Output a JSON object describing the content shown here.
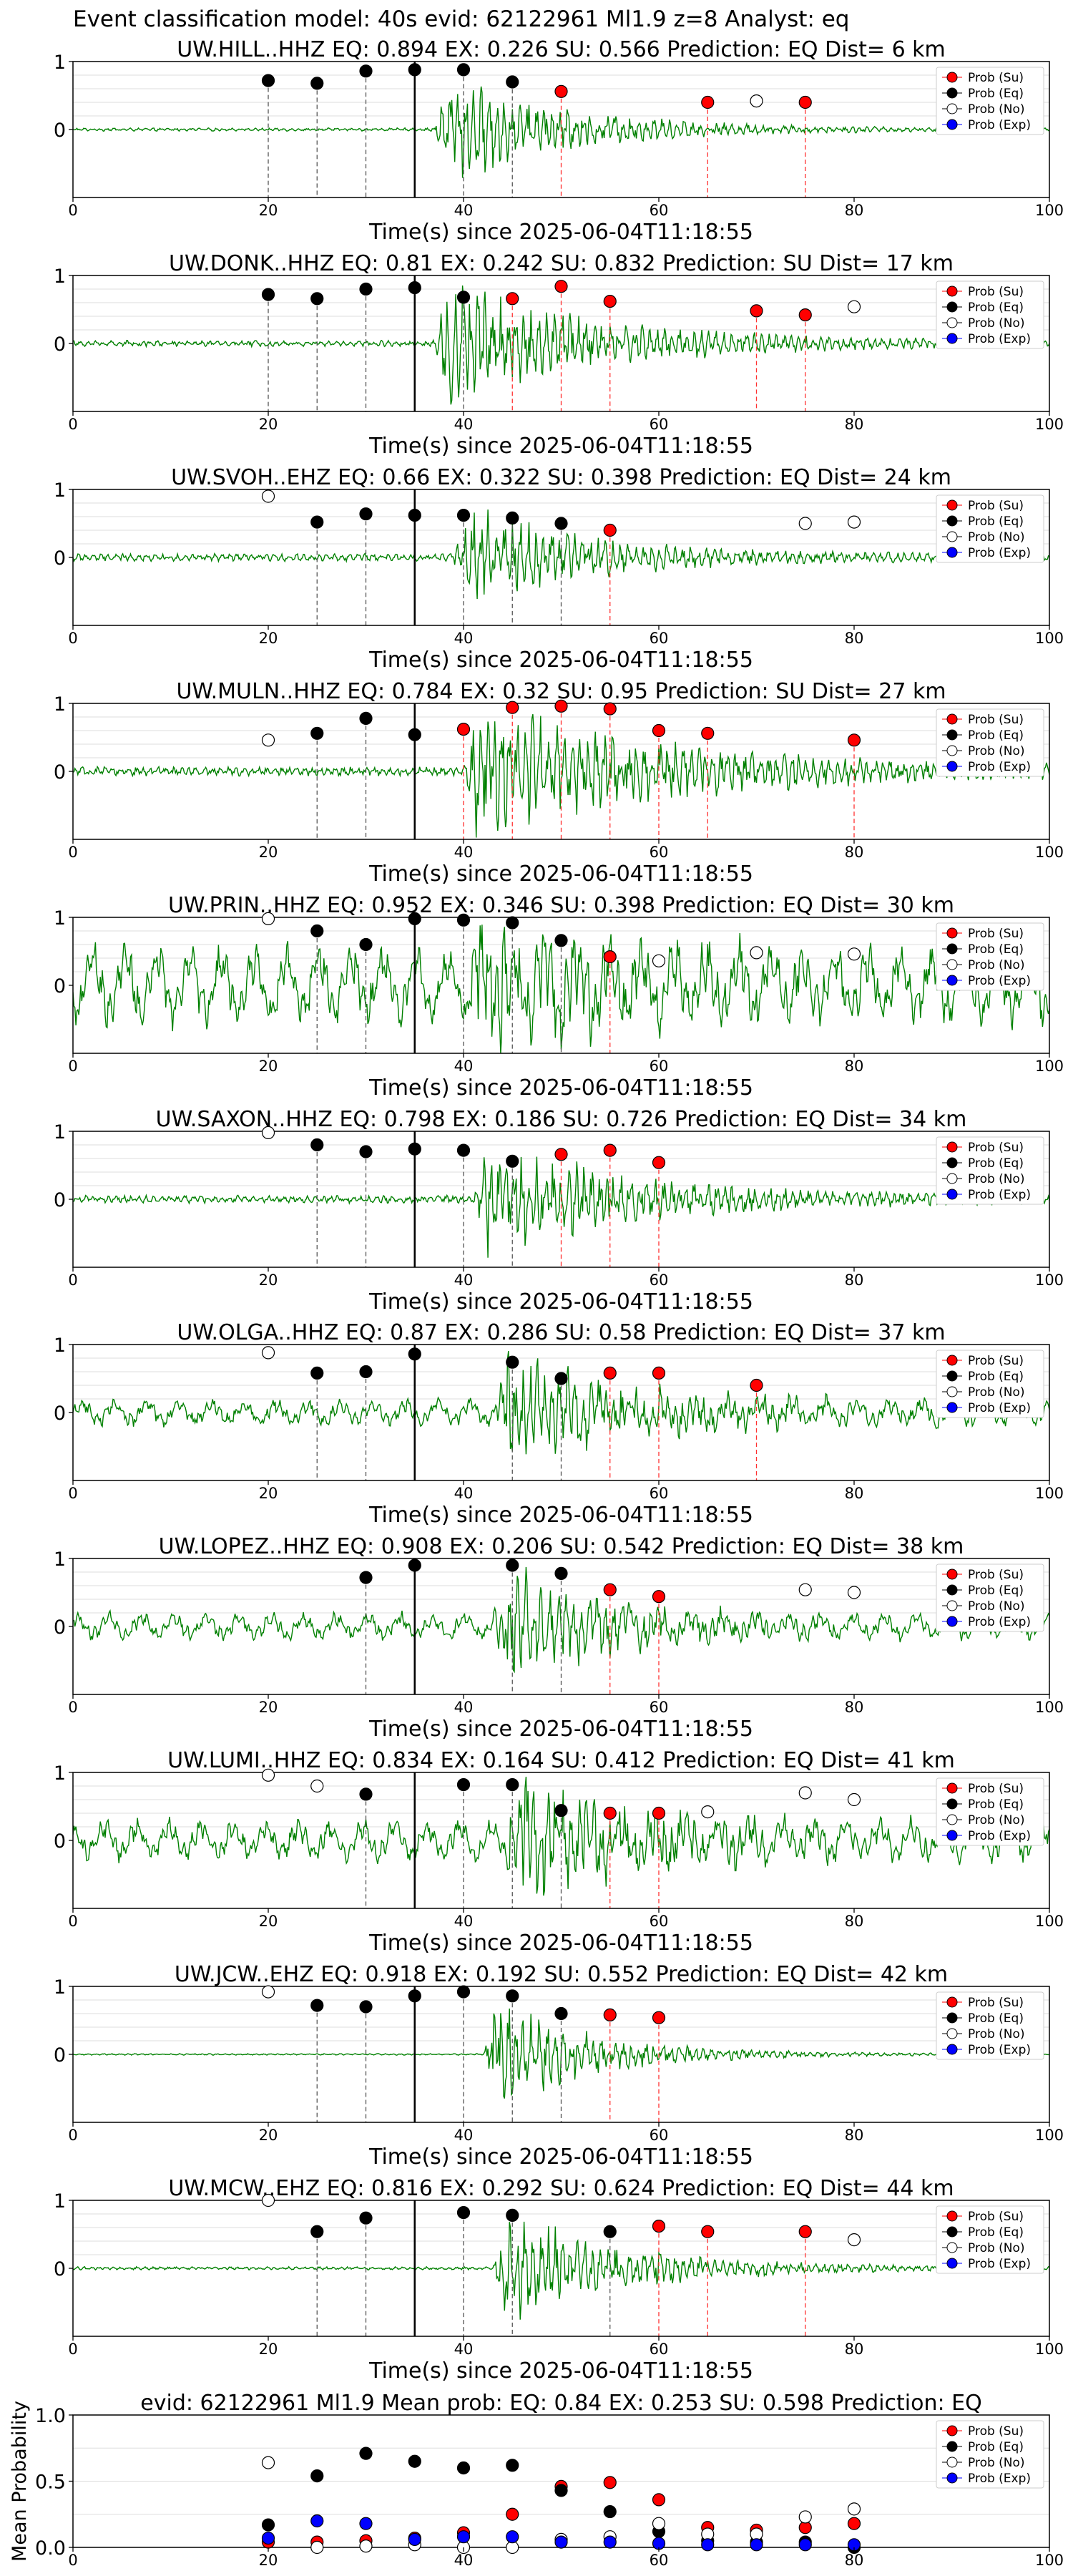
{
  "figure_title": "Event classification model: 40s evid: 62122961 Ml1.9 z=8 Analyst: eq",
  "legend": [
    "Prob (Su)",
    "Prob (Eq)",
    "Prob (No)",
    "Prob (Exp)"
  ],
  "colors": {
    "su": "#ff0000",
    "eq": "#000000",
    "no": "#ffffff",
    "exp": "#0000ff",
    "waveform": "#008000",
    "grid": "#dddddd"
  },
  "chart_data": [
    {
      "type": "line",
      "title": "UW.HILL..HHZ   EQ: 0.894  EX: 0.226  SU: 0.566   Prediction: EQ    Dist= 6 km",
      "xlabel": "Time(s) since 2025-06-04T11:18:55",
      "xlim": [
        0,
        100
      ],
      "ylim": [
        -1,
        1
      ],
      "xticks": [
        "0",
        "20",
        "40",
        "60",
        "80",
        "100"
      ],
      "yticks": [
        "1",
        "0"
      ],
      "pick": 35,
      "onset": 37,
      "amp": 0.8,
      "noise": 0.02,
      "decay": 12,
      "eq": [
        [
          20,
          0.72
        ],
        [
          25,
          0.68
        ],
        [
          30,
          0.86
        ],
        [
          35,
          0.88
        ],
        [
          40,
          0.88
        ],
        [
          45,
          0.7
        ]
      ],
      "su": [
        [
          50,
          0.56
        ],
        [
          65,
          0.4
        ],
        [
          75,
          0.4
        ]
      ],
      "no": [
        [
          70,
          0.42
        ]
      ],
      "exp": []
    },
    {
      "type": "line",
      "title": "UW.DONK..HHZ   EQ: 0.81  EX: 0.242  SU: 0.832   Prediction: SU    Dist= 17 km",
      "xlabel": "Time(s) since 2025-06-04T11:18:55",
      "xlim": [
        0,
        100
      ],
      "ylim": [
        -1,
        1
      ],
      "xticks": [
        "0",
        "20",
        "40",
        "60",
        "80",
        "100"
      ],
      "yticks": [
        "1",
        "0"
      ],
      "pick": 35,
      "onset": 37,
      "amp": 0.9,
      "noise": 0.04,
      "decay": 15,
      "eq": [
        [
          20,
          0.72
        ],
        [
          25,
          0.66
        ],
        [
          30,
          0.8
        ],
        [
          35,
          0.82
        ],
        [
          40,
          0.68
        ]
      ],
      "su": [
        [
          45,
          0.66
        ],
        [
          50,
          0.84
        ],
        [
          55,
          0.62
        ],
        [
          70,
          0.48
        ],
        [
          75,
          0.42
        ]
      ],
      "no": [
        [
          80,
          0.54
        ]
      ],
      "exp": []
    },
    {
      "type": "line",
      "title": "UW.SVOH..EHZ   EQ: 0.66  EX: 0.322  SU: 0.398   Prediction: EQ    Dist= 24 km",
      "xlabel": "Time(s) since 2025-06-04T11:18:55",
      "xlim": [
        0,
        100
      ],
      "ylim": [
        -1,
        1
      ],
      "xticks": [
        "0",
        "20",
        "40",
        "60",
        "80",
        "100"
      ],
      "yticks": [
        "1",
        "0"
      ],
      "pick": 35,
      "onset": 39,
      "amp": 0.75,
      "noise": 0.05,
      "decay": 12,
      "eq": [
        [
          25,
          0.52
        ],
        [
          30,
          0.64
        ],
        [
          35,
          0.62
        ],
        [
          40,
          0.62
        ],
        [
          45,
          0.58
        ],
        [
          50,
          0.5
        ]
      ],
      "su": [
        [
          55,
          0.4
        ]
      ],
      "no": [
        [
          20,
          0.9
        ],
        [
          75,
          0.5
        ],
        [
          80,
          0.52
        ]
      ],
      "exp": []
    },
    {
      "type": "line",
      "title": "UW.MULN..HHZ   EQ: 0.784  EX: 0.32  SU: 0.95   Prediction: SU    Dist= 27 km",
      "xlabel": "Time(s) since 2025-06-04T11:18:55",
      "xlim": [
        0,
        100
      ],
      "ylim": [
        -1,
        1
      ],
      "xticks": [
        "0",
        "20",
        "40",
        "60",
        "80",
        "100"
      ],
      "yticks": [
        "1",
        "0"
      ],
      "pick": 35,
      "onset": 40,
      "amp": 0.95,
      "noise": 0.06,
      "decay": 20,
      "eq": [
        [
          25,
          0.56
        ],
        [
          30,
          0.78
        ],
        [
          35,
          0.54
        ]
      ],
      "su": [
        [
          40,
          0.62
        ],
        [
          45,
          0.94
        ],
        [
          50,
          0.96
        ],
        [
          55,
          0.92
        ],
        [
          60,
          0.6
        ],
        [
          65,
          0.56
        ],
        [
          80,
          0.46
        ]
      ],
      "no": [
        [
          20,
          0.46
        ]
      ],
      "exp": []
    },
    {
      "type": "line",
      "title": "UW.PRIN..HHZ   EQ: 0.952  EX: 0.346  SU: 0.398   Prediction: EQ    Dist= 30 km",
      "xlabel": "Time(s) since 2025-06-04T11:18:55",
      "xlim": [
        0,
        100
      ],
      "ylim": [
        -1,
        1
      ],
      "xticks": [
        "0",
        "20",
        "40",
        "60",
        "80",
        "100"
      ],
      "yticks": [
        "1",
        "0"
      ],
      "pick": 35,
      "onset": 40,
      "amp": 0.7,
      "noise": 0.3,
      "decay": 12,
      "eq": [
        [
          25,
          0.8
        ],
        [
          30,
          0.6
        ],
        [
          35,
          0.98
        ],
        [
          40,
          0.96
        ],
        [
          45,
          0.92
        ],
        [
          50,
          0.66
        ]
      ],
      "su": [
        [
          55,
          0.42
        ]
      ],
      "no": [
        [
          20,
          0.98
        ],
        [
          60,
          0.36
        ],
        [
          70,
          0.48
        ],
        [
          80,
          0.46
        ]
      ],
      "exp": []
    },
    {
      "type": "line",
      "title": "UW.SAXON..HHZ   EQ: 0.798  EX: 0.186  SU: 0.726   Prediction: EQ    Dist= 34 km",
      "xlabel": "Time(s) since 2025-06-04T11:18:55",
      "xlim": [
        0,
        100
      ],
      "ylim": [
        -1,
        1
      ],
      "xticks": [
        "0",
        "20",
        "40",
        "60",
        "80",
        "100"
      ],
      "yticks": [
        "1",
        "0"
      ],
      "pick": 35,
      "onset": 41,
      "amp": 0.85,
      "noise": 0.05,
      "decay": 15,
      "eq": [
        [
          25,
          0.8
        ],
        [
          30,
          0.7
        ],
        [
          35,
          0.74
        ],
        [
          40,
          0.72
        ],
        [
          45,
          0.56
        ]
      ],
      "su": [
        [
          50,
          0.66
        ],
        [
          55,
          0.72
        ],
        [
          60,
          0.54
        ]
      ],
      "no": [
        [
          20,
          0.98
        ]
      ],
      "exp": []
    },
    {
      "type": "line",
      "title": "UW.OLGA..HHZ   EQ: 0.87  EX: 0.286  SU: 0.58   Prediction: EQ    Dist= 37 km",
      "xlabel": "Time(s) since 2025-06-04T11:18:55",
      "xlim": [
        0,
        100
      ],
      "ylim": [
        -1,
        1
      ],
      "xticks": [
        "0",
        "20",
        "40",
        "60",
        "80",
        "100"
      ],
      "yticks": [
        "1",
        "0"
      ],
      "pick": 35,
      "onset": 43,
      "amp": 0.75,
      "noise": 0.1,
      "decay": 12,
      "eq": [
        [
          25,
          0.58
        ],
        [
          30,
          0.6
        ],
        [
          35,
          0.86
        ],
        [
          45,
          0.74
        ],
        [
          50,
          0.5
        ]
      ],
      "su": [
        [
          55,
          0.58
        ],
        [
          60,
          0.58
        ],
        [
          70,
          0.4
        ]
      ],
      "no": [
        [
          20,
          0.88
        ]
      ],
      "exp": []
    },
    {
      "type": "line",
      "title": "UW.LOPEZ..HHZ   EQ: 0.908  EX: 0.206  SU: 0.542   Prediction: EQ    Dist= 38 km",
      "xlabel": "Time(s) since 2025-06-04T11:18:55",
      "xlim": [
        0,
        100
      ],
      "ylim": [
        -1,
        1
      ],
      "xticks": [
        "0",
        "20",
        "40",
        "60",
        "80",
        "100"
      ],
      "yticks": [
        "1",
        "0"
      ],
      "pick": 35,
      "onset": 43,
      "amp": 0.8,
      "noise": 0.1,
      "decay": 10,
      "eq": [
        [
          30,
          0.72
        ],
        [
          35,
          0.9
        ],
        [
          45,
          0.9
        ],
        [
          50,
          0.78
        ]
      ],
      "su": [
        [
          55,
          0.54
        ],
        [
          60,
          0.44
        ]
      ],
      "no": [
        [
          75,
          0.54
        ],
        [
          80,
          0.5
        ]
      ],
      "exp": []
    },
    {
      "type": "line",
      "title": "UW.LUMI..HHZ   EQ: 0.834  EX: 0.164  SU: 0.412   Prediction: EQ    Dist= 41 km",
      "xlabel": "Time(s) since 2025-06-04T11:18:55",
      "xlim": [
        0,
        100
      ],
      "ylim": [
        -1,
        1
      ],
      "xticks": [
        "0",
        "20",
        "40",
        "60",
        "80",
        "100"
      ],
      "yticks": [
        "1",
        "0"
      ],
      "pick": 35,
      "onset": 44,
      "amp": 0.8,
      "noise": 0.15,
      "decay": 12,
      "eq": [
        [
          30,
          0.68
        ],
        [
          40,
          0.82
        ],
        [
          45,
          0.82
        ],
        [
          50,
          0.44
        ]
      ],
      "su": [
        [
          55,
          0.4
        ],
        [
          60,
          0.4
        ]
      ],
      "no": [
        [
          20,
          0.96
        ],
        [
          25,
          0.8
        ],
        [
          65,
          0.42
        ],
        [
          75,
          0.7
        ],
        [
          80,
          0.6
        ]
      ],
      "exp": []
    },
    {
      "type": "line",
      "title": "UW.JCW..EHZ   EQ: 0.918  EX: 0.192  SU: 0.552   Prediction: EQ    Dist= 42 km",
      "xlabel": "Time(s) since 2025-06-04T11:18:55",
      "xlim": [
        0,
        100
      ],
      "ylim": [
        -1,
        1
      ],
      "xticks": [
        "0",
        "20",
        "40",
        "60",
        "80",
        "100"
      ],
      "yticks": [
        "1",
        "0"
      ],
      "pick": 35,
      "onset": 42,
      "amp": 0.85,
      "noise": 0.01,
      "decay": 10,
      "eq": [
        [
          25,
          0.72
        ],
        [
          30,
          0.7
        ],
        [
          35,
          0.86
        ],
        [
          40,
          0.92
        ],
        [
          45,
          0.86
        ],
        [
          50,
          0.6
        ]
      ],
      "su": [
        [
          55,
          0.58
        ],
        [
          60,
          0.54
        ]
      ],
      "no": [
        [
          20,
          0.92
        ]
      ],
      "exp": []
    },
    {
      "type": "line",
      "title": "UW.MCW..EHZ   EQ: 0.816  EX: 0.292  SU: 0.624   Prediction: EQ    Dist= 44 km",
      "xlabel": "Time(s) since 2025-06-04T11:18:55",
      "xlim": [
        0,
        100
      ],
      "ylim": [
        -1,
        1
      ],
      "xticks": [
        "0",
        "20",
        "40",
        "60",
        "80",
        "100"
      ],
      "yticks": [
        "1",
        "0"
      ],
      "pick": 35,
      "onset": 43,
      "amp": 0.85,
      "noise": 0.02,
      "decay": 12,
      "eq": [
        [
          25,
          0.54
        ],
        [
          30,
          0.74
        ],
        [
          40,
          0.82
        ],
        [
          45,
          0.78
        ],
        [
          55,
          0.54
        ]
      ],
      "su": [
        [
          60,
          0.62
        ],
        [
          65,
          0.54
        ],
        [
          75,
          0.54
        ]
      ],
      "no": [
        [
          20,
          1.0
        ],
        [
          80,
          0.42
        ]
      ],
      "exp": []
    },
    {
      "type": "scatter",
      "title": "evid: 62122961  Ml1.9   Mean prob:   EQ: 0.84  EX: 0.253  SU: 0.598   Prediction: EQ",
      "ylabel": "Mean Probability",
      "xlim": [
        0,
        100
      ],
      "ylim": [
        0,
        1
      ],
      "xticks": [
        "0",
        "20",
        "40",
        "60",
        "80",
        "100"
      ],
      "yticks": [
        "1.0",
        "0.5",
        "0.0"
      ],
      "eq": [
        [
          20,
          0.17
        ],
        [
          25,
          0.54
        ],
        [
          30,
          0.71
        ],
        [
          35,
          0.65
        ],
        [
          40,
          0.6
        ],
        [
          45,
          0.62
        ],
        [
          50,
          0.43
        ],
        [
          55,
          0.27
        ],
        [
          60,
          0.12
        ],
        [
          65,
          0.05
        ],
        [
          70,
          0.04
        ],
        [
          75,
          0.04
        ],
        [
          80,
          0.0
        ]
      ],
      "su": [
        [
          20,
          0.04
        ],
        [
          25,
          0.04
        ],
        [
          30,
          0.05
        ],
        [
          35,
          0.07
        ],
        [
          40,
          0.11
        ],
        [
          45,
          0.25
        ],
        [
          50,
          0.46
        ],
        [
          55,
          0.49
        ],
        [
          60,
          0.36
        ],
        [
          65,
          0.15
        ],
        [
          70,
          0.13
        ],
        [
          75,
          0.15
        ],
        [
          80,
          0.18
        ]
      ],
      "no": [
        [
          20,
          0.64
        ],
        [
          25,
          0.0
        ],
        [
          30,
          0.01
        ],
        [
          35,
          0.02
        ],
        [
          40,
          0.0
        ],
        [
          45,
          0.0
        ],
        [
          50,
          0.06
        ],
        [
          55,
          0.08
        ],
        [
          60,
          0.18
        ],
        [
          65,
          0.1
        ],
        [
          70,
          0.1
        ],
        [
          75,
          0.23
        ],
        [
          80,
          0.29
        ]
      ],
      "exp": [
        [
          20,
          0.07
        ],
        [
          25,
          0.2
        ],
        [
          30,
          0.18
        ],
        [
          35,
          0.06
        ],
        [
          40,
          0.08
        ],
        [
          45,
          0.08
        ],
        [
          50,
          0.04
        ],
        [
          55,
          0.04
        ],
        [
          60,
          0.03
        ],
        [
          65,
          0.02
        ],
        [
          70,
          0.02
        ],
        [
          75,
          0.02
        ],
        [
          80,
          0.02
        ]
      ]
    }
  ]
}
